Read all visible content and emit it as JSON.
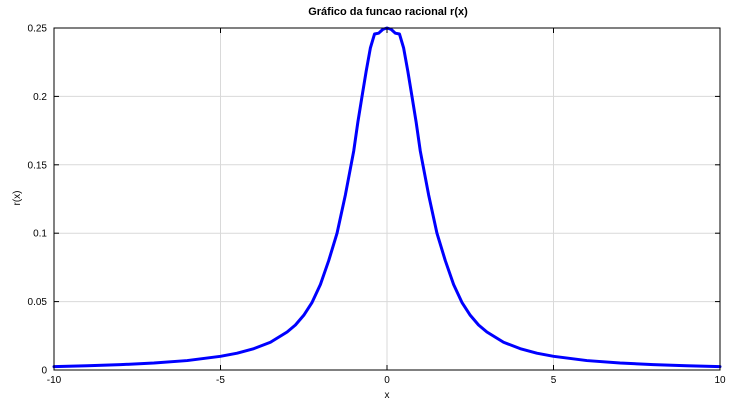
{
  "chart_data": {
    "type": "line",
    "title": "Gráfico da funcao racional r(x)",
    "xlabel": "x",
    "ylabel": "r(x)",
    "xlim": [
      -10,
      10
    ],
    "ylim": [
      0,
      0.25
    ],
    "x_ticks": [
      -10,
      -5,
      0,
      5,
      10
    ],
    "x_tick_labels": [
      "-10",
      "-5",
      "0",
      "5",
      "10"
    ],
    "y_ticks": [
      0,
      0.05,
      0.1,
      0.15,
      0.2,
      0.25
    ],
    "y_tick_labels": [
      "0",
      "0.05",
      "0.1",
      "0.15",
      "0.2",
      "0.25"
    ],
    "grid": true,
    "line_color": "#0000ff",
    "series": [
      {
        "x": [
          -10,
          -9,
          -8,
          -7,
          -6,
          -5,
          -4.5,
          -4,
          -3.5,
          -3,
          -2.75,
          -2.5,
          -2.25,
          -2,
          -1.75,
          -1.5,
          -1.25,
          -1,
          -0.875,
          -0.75,
          -0.625,
          -0.5,
          -0.375,
          -0.25,
          -0.125,
          0,
          0.125,
          0.25,
          0.375,
          0.5,
          0.625,
          0.75,
          0.875,
          1,
          1.25,
          1.5,
          1.75,
          2,
          2.25,
          2.5,
          2.75,
          3,
          3.5,
          4,
          4.5,
          5,
          6,
          7,
          8,
          9,
          10
        ],
        "y": [
          0.0025,
          0.0031,
          0.0039,
          0.0051,
          0.0069,
          0.01,
          0.0123,
          0.0156,
          0.0203,
          0.0278,
          0.0329,
          0.04,
          0.0494,
          0.0625,
          0.08,
          0.1,
          0.128,
          0.16,
          0.1812,
          0.2,
          0.2185,
          0.2353,
          0.2456,
          0.2462,
          0.249,
          0.25,
          0.249,
          0.2462,
          0.2456,
          0.2353,
          0.2185,
          0.2,
          0.1812,
          0.16,
          0.128,
          0.1,
          0.08,
          0.0625,
          0.0494,
          0.04,
          0.0329,
          0.0278,
          0.0203,
          0.0156,
          0.0123,
          0.01,
          0.0069,
          0.0051,
          0.0039,
          0.0031,
          0.0025
        ]
      }
    ]
  }
}
